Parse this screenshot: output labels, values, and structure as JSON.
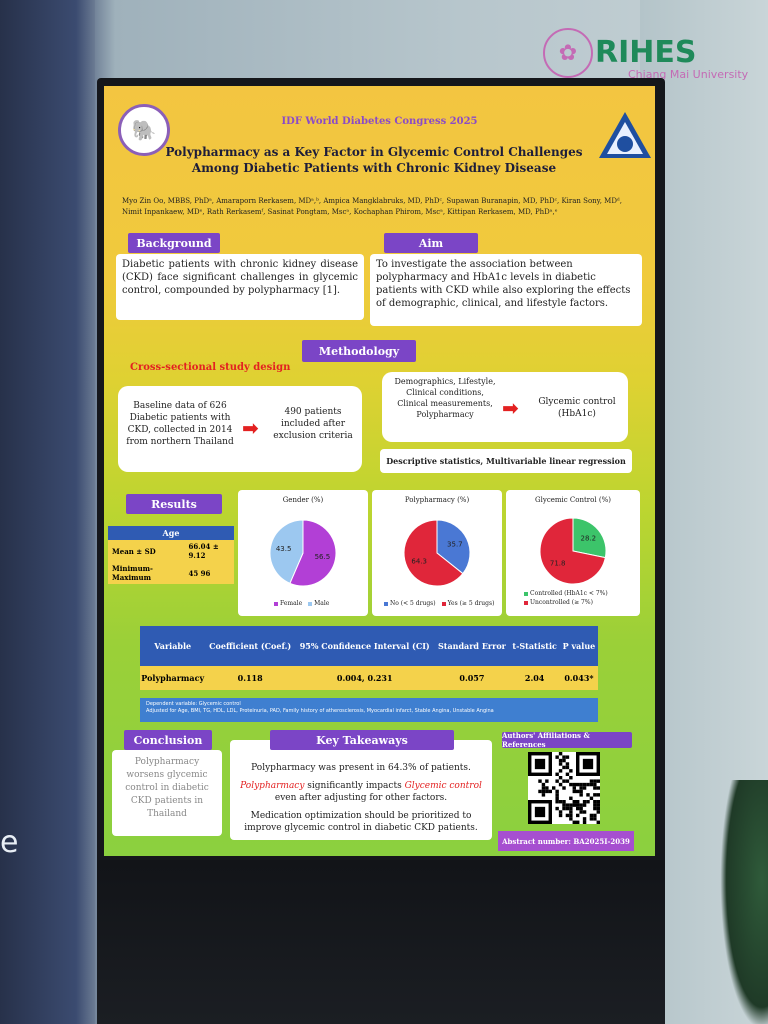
{
  "brand": {
    "name": "RIHES",
    "subtitle": "Chiang Mai University"
  },
  "wall_letter": "e",
  "poster": {
    "conference": "IDF World Diabetes Congress 2025",
    "title": "Polypharmacy as a Key Factor in Glycemic Control Challenges Among Diabetic Patients with Chronic Kidney Disease",
    "authors": "Myo Zin Oo, MBBS, PhDᵃ, Amaraporn Rerkasem, MDᵃ,ᵇ, Ampica Mangklabruks, MD, PhDᶜ, Supawan Buranapin, MD, PhDᶜ, Kiran Sony, MDᵈ, Nimit Inpankaew, MDᵉ, Rath Rerkasemᶠ, Sasinat Pongtam, Mscᵃ, Kochaphan Phirom, Mscᵃ, Kittipan Rerkasem, MD, PhDᵃ,ᵉ",
    "background": {
      "label": "Background",
      "text": "Diabetic patients with chronic kidney disease (CKD) face significant challenges in glycemic control, compounded by polypharmacy [1]."
    },
    "aim": {
      "label": "Aim",
      "text": "To investigate the association between polypharmacy and HbA1c levels in diabetic patients with CKD while also exploring the effects of demographic, clinical, and lifestyle factors."
    },
    "methodology": {
      "label": "Methodology",
      "design": "Cross-sectional study design",
      "baseline": "Baseline data of 626 Diabetic patients with CKD, collected in 2014 from northern Thailand",
      "included": "490 patients included after exclusion criteria",
      "variables": "Demographics, Lifestyle, Clinical conditions, Clinical measurements, Polypharmacy",
      "outcome": "Glycemic control (HbA1c)",
      "analysis": "Descriptive statistics, Multivariable linear regression"
    },
    "results": {
      "label": "Results",
      "age": {
        "header": "Age",
        "rows": [
          {
            "label": "Mean ± SD",
            "value": "66.04 ± 9.12"
          },
          {
            "label": "Minimum-Maximum",
            "value": "45 96"
          }
        ]
      }
    },
    "charts": {
      "gender": {
        "title": "Gender (%)",
        "female": 56.5,
        "male": 43.5,
        "female_label": "Female",
        "male_label": "Male",
        "female_color": "#b23fd6",
        "male_color": "#9cc8f0"
      },
      "polypharmacy": {
        "title": "Polypharmacy (%)",
        "no": 35.7,
        "yes": 64.3,
        "no_label": "No (< 5 drugs)",
        "yes_label": "Yes (≥ 5 drugs)",
        "no_color": "#4a78d4",
        "yes_color": "#e0263a"
      },
      "glycemic": {
        "title": "Glycemic Control (%)",
        "controlled": 28.2,
        "uncontrolled": 71.8,
        "controlled_label": "Controlled (HbA1c < 7%)",
        "uncontrolled_label": "Uncontrolled (≥ 7%)",
        "controlled_color": "#3cc46a",
        "uncontrolled_color": "#e0263a"
      }
    },
    "regression": {
      "headers": [
        "Variable",
        "Coefficient (Coef.)",
        "95% Confidence Interval (CI)",
        "Standard Error",
        "t-Statistic",
        "P value"
      ],
      "row": [
        "Polypharmacy",
        "0.118",
        "0.004, 0.231",
        "0.057",
        "2.04",
        "0.043*"
      ],
      "dependent": "Dependent variable: Glycemic control",
      "adjusted": "Adjusted for Age, BMI, TG, HDL, LDL, Proteinuria, PAD, Family history of atherosclerosis, Myocardial infarct, Stable Angina, Unstable Angina"
    },
    "conclusion": {
      "label": "Conclusion",
      "text": "Polypharmacy worsens glycemic control in diabetic CKD patients in Thailand"
    },
    "takeaways": {
      "label": "Key Takeaways",
      "line1": "Polypharmacy was present in 64.3% of patients.",
      "line2_red1": "Polypharmacy",
      "line2_mid": " significantly impacts ",
      "line2_red2": "Glycemic control",
      "line2_end": " even after adjusting for other factors.",
      "line3": "Medication optimization should be prioritized to improve glycemic control in diabetic CKD patients."
    },
    "affiliations_label": "Authors' Affiliations & References",
    "abstract_number": "Abstract number: BA2025I-2039"
  }
}
